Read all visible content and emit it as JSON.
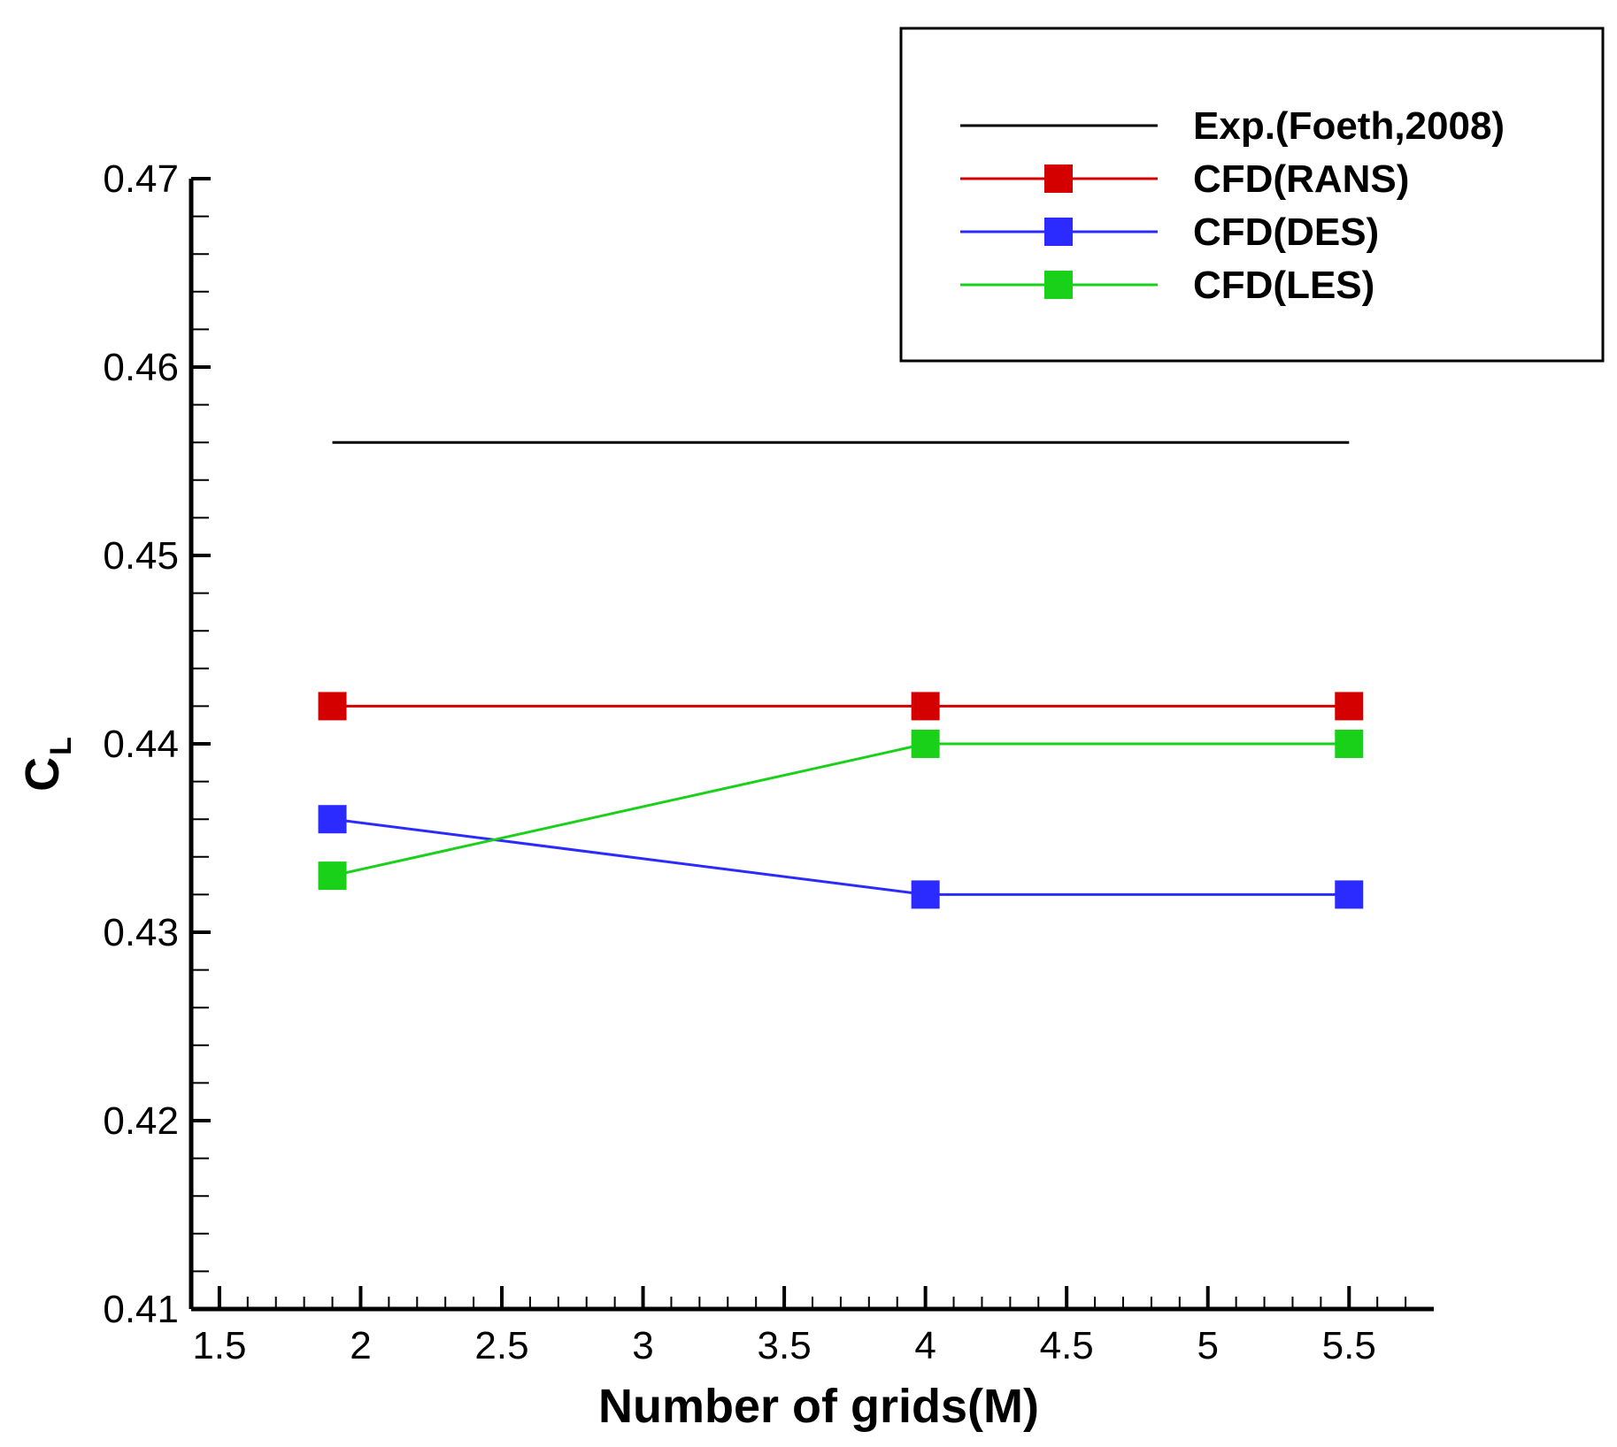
{
  "chart_data": {
    "type": "line",
    "title": "",
    "xlabel": "Number of grids(M)",
    "ylabel": {
      "main": "C",
      "sub": "L"
    },
    "xlim": [
      1.4,
      5.8
    ],
    "ylim": [
      0.41,
      0.47
    ],
    "x_ticks": [
      1.5,
      2,
      2.5,
      3,
      3.5,
      4,
      4.5,
      5,
      5.5
    ],
    "x_tick_labels": [
      "1.5",
      "2",
      "2.5",
      "3",
      "3.5",
      "4",
      "4.5",
      "5",
      "5.5"
    ],
    "y_ticks": [
      0.41,
      0.42,
      0.43,
      0.44,
      0.45,
      0.46,
      0.47
    ],
    "y_tick_labels": [
      "0.41",
      "0.42",
      "0.43",
      "0.44",
      "0.45",
      "0.46",
      "0.47"
    ],
    "grid": false,
    "legend_position": "top-right",
    "series": [
      {
        "name": "Exp.(Foeth,2008)",
        "color": "#000000",
        "marker": "none",
        "x": [
          1.9,
          5.5
        ],
        "values": [
          0.456,
          0.456
        ]
      },
      {
        "name": "CFD(RANS)",
        "color": "#d40000",
        "marker": "square",
        "x": [
          1.9,
          4.0,
          5.5
        ],
        "values": [
          0.442,
          0.442,
          0.442
        ]
      },
      {
        "name": "CFD(DES)",
        "color": "#2b2bff",
        "marker": "square",
        "x": [
          1.9,
          4.0,
          5.5
        ],
        "values": [
          0.436,
          0.432,
          0.432
        ]
      },
      {
        "name": "CFD(LES)",
        "color": "#19d119",
        "marker": "square",
        "x": [
          1.9,
          4.0,
          5.5
        ],
        "values": [
          0.433,
          0.44,
          0.44
        ]
      }
    ]
  }
}
